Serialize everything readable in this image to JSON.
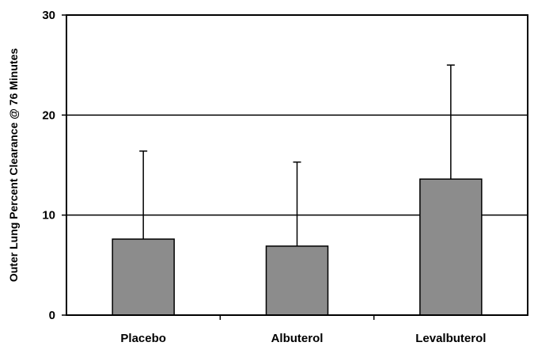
{
  "chart_data": {
    "type": "bar",
    "categories": [
      "Placebo",
      "Albuterol",
      "Levalbuterol"
    ],
    "values": [
      7.6,
      6.9,
      13.6
    ],
    "error_upper": [
      16.4,
      15.3,
      25.0
    ],
    "ylabel": "Outer Lung Percent Clearance @ 76 Minutes",
    "xlabel": "",
    "ylim": [
      0,
      30
    ],
    "yticks": [
      0,
      10,
      20,
      30
    ],
    "grid": true,
    "colors": {
      "bar_fill": "#8c8c8c",
      "bar_stroke": "#000000",
      "axis": "#000000",
      "grid": "#000000",
      "error_bar": "#000000"
    }
  }
}
